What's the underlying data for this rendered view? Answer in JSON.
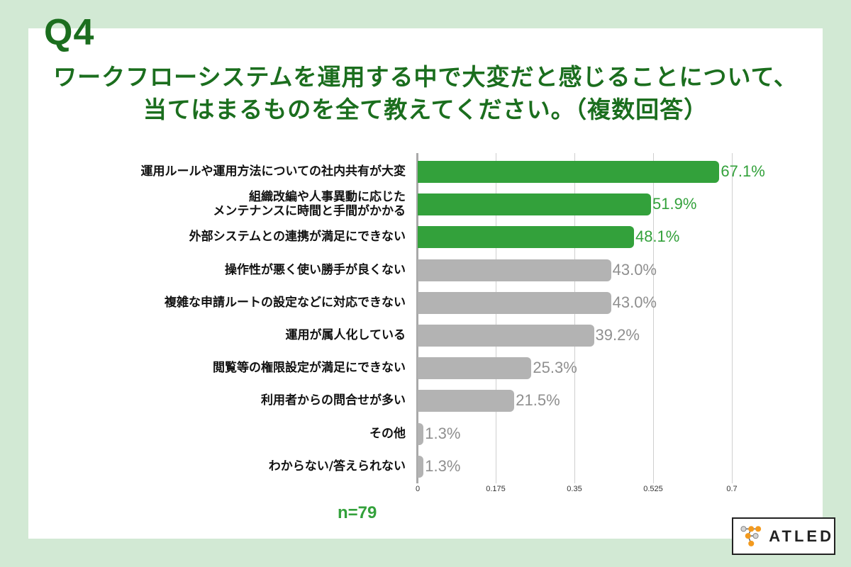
{
  "header": {
    "question_number": "Q4",
    "title": "ワークフローシステムを運用する中で大変だと感じることについて、当てはまるものを全て教えてください。（複数回答）"
  },
  "footer": {
    "sample_size": "n=79",
    "logo_text": "ATLED"
  },
  "colors": {
    "background": "#d2e9d4",
    "title": "#1b6e1e",
    "highlight_bar": "#33a13b",
    "default_bar": "#b3b3b3",
    "default_value": "#8f8f8f"
  },
  "chart_data": {
    "type": "bar",
    "orientation": "horizontal",
    "title": "ワークフローシステムを運用する中で大変だと感じることについて、当てはまるものを全て教えてください。（複数回答）",
    "xlabel": "",
    "ylabel": "",
    "xlim": [
      0,
      0.7
    ],
    "x_ticks": [
      "0",
      "0.175",
      "0.35",
      "0.525",
      "0.7"
    ],
    "grid": true,
    "legend": null,
    "sample_size": "n=79",
    "categories": [
      "運用ルールや運用方法についての社内共有が大変",
      "組織改編や人事異動に応じた\nメンテナンスに時間と手間がかかる",
      "外部システムとの連携が満足にできない",
      "操作性が悪く使い勝手が良くない",
      "複雑な申請ルートの設定などに対応できない",
      "運用が属人化している",
      "閲覧等の権限設定が満足にできない",
      "利用者からの問合せが多い",
      "その他",
      "わからない/答えられない"
    ],
    "values": [
      0.671,
      0.519,
      0.481,
      0.43,
      0.43,
      0.392,
      0.253,
      0.215,
      0.013,
      0.013
    ],
    "value_labels": [
      "67.1%",
      "51.9%",
      "48.1%",
      "43.0%",
      "43.0%",
      "39.2%",
      "25.3%",
      "21.5%",
      "1.3%",
      "1.3%"
    ],
    "highlighted": [
      true,
      true,
      true,
      false,
      false,
      false,
      false,
      false,
      false,
      false
    ]
  }
}
